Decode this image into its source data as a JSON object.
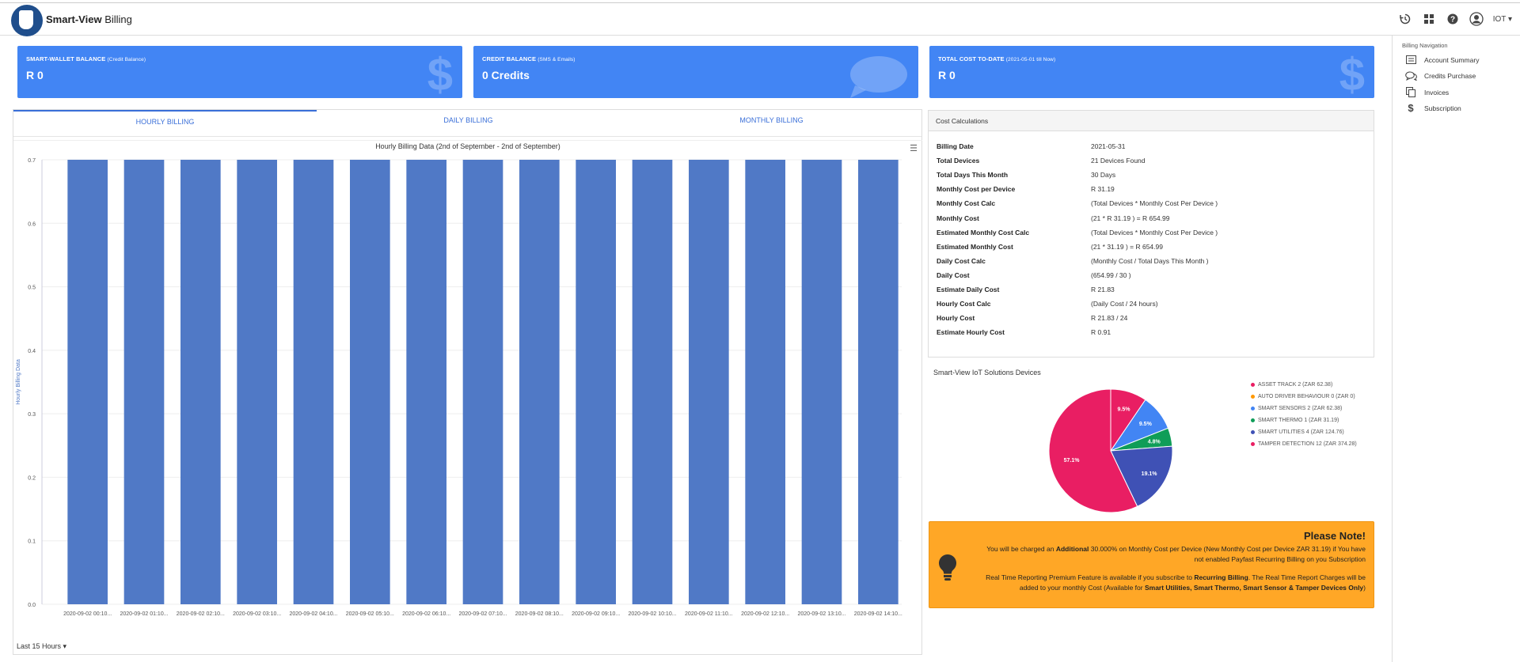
{
  "header": {
    "brand_bold": "Smart-View",
    "brand_light": " Billing",
    "user": "IOT"
  },
  "cards": [
    {
      "title": "SMART-WALLET BALANCE",
      "subtitle": "(Credit Balance)",
      "value": "R 0",
      "icon": "dollar-icon"
    },
    {
      "title": "CREDIT BALANCE",
      "subtitle": "(SMS & Emails)",
      "value": "0 Credits",
      "icon": "chat-bubble-icon"
    },
    {
      "title": "TOTAL COST TO-DATE",
      "subtitle": "(2021-05-01 till Now)",
      "value": "R 0",
      "icon": "dollar-icon"
    }
  ],
  "tabs": [
    "HOURLY BILLING",
    "DAILY BILLING",
    "MONTHLY BILLING"
  ],
  "range_label": "Last 15 Hours",
  "chart_data": {
    "type": "bar",
    "title": "Hourly Billing Data (2nd of September - 2nd of September)",
    "ylabel": "Hourly Billing Data",
    "ylim": [
      0,
      0.7
    ],
    "yticks": [
      "0.0",
      "0.1",
      "0.2",
      "0.3",
      "0.4",
      "0.5",
      "0.6",
      "0.7"
    ],
    "categories": [
      "2020-09-02 00:10...",
      "2020-09-02 01:10...",
      "2020-09-02 02:10...",
      "2020-09-02 03:10...",
      "2020-09-02 04:10...",
      "2020-09-02 05:10...",
      "2020-09-02 06:10...",
      "2020-09-02 07:10...",
      "2020-09-02 08:10...",
      "2020-09-02 09:10...",
      "2020-09-02 10:10...",
      "2020-09-02 11:10...",
      "2020-09-02 12:10...",
      "2020-09-02 13:10...",
      "2020-09-02 14:10..."
    ],
    "values": [
      0.7,
      0.7,
      0.7,
      0.7,
      0.7,
      0.7,
      0.7,
      0.7,
      0.7,
      0.7,
      0.7,
      0.7,
      0.7,
      0.7,
      0.7
    ],
    "color": "#5079c6"
  },
  "cost": {
    "title": "Cost Calculations",
    "rows": [
      {
        "k": "Billing Date",
        "v": "2021-05-31"
      },
      {
        "k": "Total Devices",
        "v": "21 Devices Found"
      },
      {
        "k": "Total Days This Month",
        "v": "30 Days"
      },
      {
        "k": "Monthly Cost per Device",
        "v": "R 31.19"
      },
      {
        "k": "Monthly Cost Calc",
        "v": "(Total Devices * Monthly Cost Per Device )"
      },
      {
        "k": "Monthly Cost",
        "v": "(21 * R 31.19 ) = R 654.99"
      },
      {
        "k": "Estimated Monthly Cost Calc",
        "v": "(Total Devices * Monthly Cost Per Device )"
      },
      {
        "k": "Estimated Monthly Cost",
        "v": "(21 * 31.19 ) = R 654.99"
      },
      {
        "k": "Daily Cost Calc",
        "v": "(Monthly Cost / Total Days This Month )"
      },
      {
        "k": "Daily Cost",
        "v": "(654.99 / 30 )"
      },
      {
        "k": "Estimate Daily Cost",
        "v": "R 21.83"
      },
      {
        "k": "Hourly Cost Calc",
        "v": "(Daily Cost / 24 hours)"
      },
      {
        "k": "Hourly Cost",
        "v": "R 21.83 / 24"
      },
      {
        "k": "Estimate Hourly Cost",
        "v": "R 0.91"
      }
    ]
  },
  "pie": {
    "title": "Smart-View IoT Solutions Devices",
    "slices": [
      {
        "label": "ASSET TRACK 2 (ZAR 62.38)",
        "value": 9.5,
        "display": "9.5%",
        "color": "#e91e63"
      },
      {
        "label": "AUTO DRIVER BEHAVIOUR 0 (ZAR 0)",
        "value": 0,
        "display": "",
        "color": "#ff9800"
      },
      {
        "label": "SMART SENSORS 2 (ZAR 62.38)",
        "value": 9.5,
        "display": "9.5%",
        "color": "#4285f4"
      },
      {
        "label": "SMART THERMO 1 (ZAR 31.19)",
        "value": 4.8,
        "display": "4.8%",
        "color": "#0f9d58"
      },
      {
        "label": "SMART UTILITIES 4 (ZAR 124.76)",
        "value": 19.1,
        "display": "19.1%",
        "color": "#3f51b5"
      },
      {
        "label": "TAMPER DETECTION 12 (ZAR 374.28)",
        "value": 57.1,
        "display": "57.1%",
        "color": "#e91e63"
      }
    ]
  },
  "note": {
    "title": "Please Note!",
    "p1_a": "You will be charged an ",
    "p1_b": "Additional",
    "p1_c": " 30.000% on Monthly Cost per Device (New Monthly Cost per Device ZAR 31.19) if You have",
    "p1_d": "not enabled Payfast Recurring Billing on you Subscription",
    "p2_a": "Real Time Reporting Premium Feature is available if you subscribe to ",
    "p2_b": "Recurring Billing",
    "p2_c": ". The Real Time Report Charges will be",
    "p2_d": "added to your monthly Cost (Available for ",
    "p2_e": "Smart Utilities, Smart Thermo, Smart Sensor & Tamper Devices Only",
    "p2_f": ")"
  },
  "nav": {
    "title": "Billing Navigation",
    "items": [
      {
        "label": "Account Summary",
        "icon": "document-icon"
      },
      {
        "label": "Credits Purchase",
        "icon": "chat-icon"
      },
      {
        "label": "Invoices",
        "icon": "copy-icon"
      },
      {
        "label": "Subscription",
        "icon": "dollar-icon"
      }
    ]
  }
}
